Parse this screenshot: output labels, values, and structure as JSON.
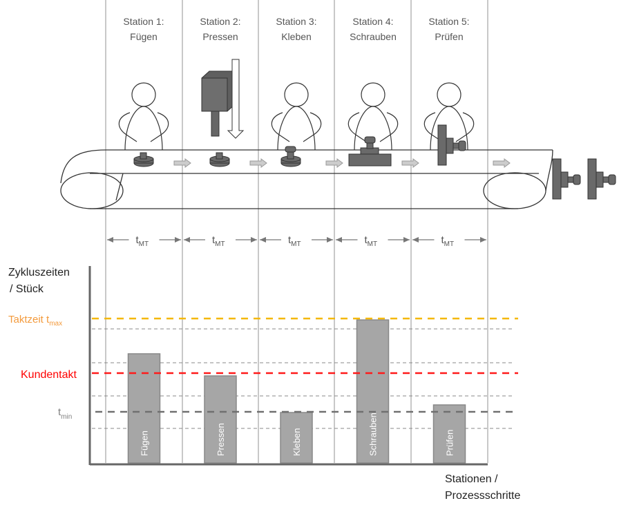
{
  "stations": [
    {
      "line1": "Station 1:",
      "line2": "Fügen"
    },
    {
      "line1": "Station 2:",
      "line2": "Pressen"
    },
    {
      "line1": "Station 3:",
      "line2": "Kleben"
    },
    {
      "line1": "Station 4:",
      "line2": "Schrauben"
    },
    {
      "line1": "Station 5:",
      "line2": "Prüfen"
    }
  ],
  "tmt": {
    "main": "t",
    "sub": "MT"
  },
  "y_label": {
    "line1": "Zykluszeiten",
    "line2": "/ Stück"
  },
  "x_label": {
    "line1": "Stationen /",
    "line2": "Prozessschritte"
  },
  "reference_lines": {
    "tmax": {
      "label": "Taktzeit t",
      "sub": "max",
      "value": 209,
      "color": "#f5b800",
      "label_color": "#f39a3c"
    },
    "kundentakt": {
      "label": "Kundentakt",
      "value": 130,
      "color": "#ff1a1a",
      "label_color": "#ff0000"
    },
    "tmin": {
      "label": "t",
      "sub": "min",
      "value": 74,
      "color": "#707070",
      "label_color": "#808080"
    }
  },
  "chart_data": {
    "type": "bar",
    "categories": [
      "Fügen",
      "Pressen",
      "Kleben",
      "Schrauben",
      "Prüfen"
    ],
    "values": [
      158,
      126,
      73,
      207,
      84
    ],
    "xlabel": "Stationen / Prozessschritte",
    "ylabel": "Zykluszeiten / Stück",
    "ylim": [
      0,
      285
    ],
    "bar_color": "#a6a6a6"
  }
}
